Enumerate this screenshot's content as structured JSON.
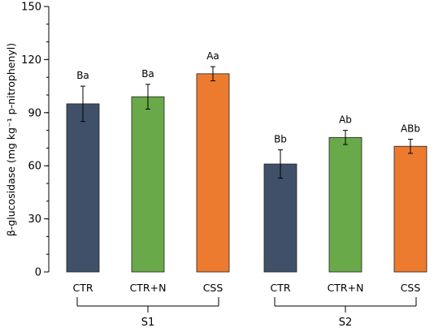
{
  "chart_data": {
    "type": "bar",
    "ylabel": "β-glucosidase (mg kg⁻¹ p-nitrophenyl)",
    "ylim": [
      0,
      150
    ],
    "yticks": [
      0,
      30,
      60,
      90,
      120,
      150
    ],
    "ytick_labels": [
      "0",
      "30",
      "60",
      "90",
      "120",
      "150"
    ],
    "minor_tick_step": 10,
    "grid": false,
    "groups": [
      {
        "name": "S1",
        "bars": [
          {
            "category": "CTR",
            "value": 95,
            "error": 10,
            "label": "Ba",
            "color": "#415069"
          },
          {
            "category": "CTR+N",
            "value": 99,
            "error": 7,
            "label": "Ba",
            "color": "#6aa94a"
          },
          {
            "category": "CSS",
            "value": 112,
            "error": 4,
            "label": "Aa",
            "color": "#ec7b30"
          }
        ]
      },
      {
        "name": "S2",
        "bars": [
          {
            "category": "CTR",
            "value": 61,
            "error": 8,
            "label": "Bb",
            "color": "#415069"
          },
          {
            "category": "CTR+N",
            "value": 76,
            "error": 4,
            "label": "Ab",
            "color": "#6aa94a"
          },
          {
            "category": "CSS",
            "value": 71,
            "error": 4,
            "label": "ABb",
            "color": "#ec7b30"
          }
        ]
      }
    ]
  }
}
